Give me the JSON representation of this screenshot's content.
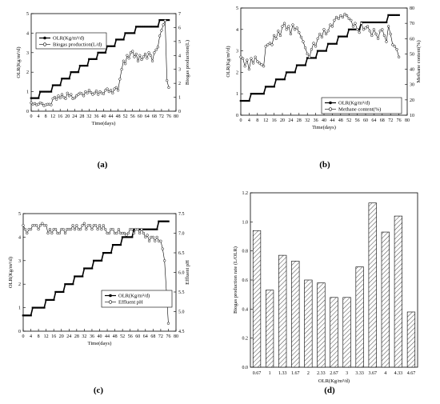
{
  "chart_data": [
    {
      "id": "a",
      "type": "line",
      "caption": "(a)",
      "xlabel": "Time(days)",
      "ylabel": "OLR(Kg/m³/d)",
      "y2label": "Biogas production(L)",
      "xticks": [
        0,
        4,
        8,
        12,
        16,
        20,
        24,
        28,
        32,
        36,
        40,
        44,
        48,
        52,
        56,
        60,
        64,
        68,
        72,
        76,
        80
      ],
      "yticks": [
        0,
        1,
        2,
        3,
        4,
        5
      ],
      "y2ticks": [
        0,
        1,
        2,
        3,
        4,
        5,
        6,
        7
      ],
      "xlim": [
        0,
        80
      ],
      "ylim": [
        0,
        5
      ],
      "y2lim": [
        0,
        7
      ],
      "legend": [
        "OLR(Kg/m³/d)",
        "Biogas production(L/d)"
      ],
      "series": [
        {
          "name": "OLR(Kg/m³/d)",
          "axis": "left",
          "x": [
            0,
            1,
            2,
            3,
            4,
            5,
            6,
            7,
            8,
            9,
            10,
            11,
            12,
            13,
            14,
            15,
            16,
            17,
            18,
            19,
            20,
            21,
            22,
            23,
            24,
            25,
            26,
            27,
            28,
            29,
            30,
            31,
            32,
            33,
            34,
            35,
            36,
            37,
            38,
            39,
            40,
            41,
            42,
            43,
            44,
            45,
            46,
            47,
            48,
            49,
            50,
            51,
            52,
            53,
            54,
            55,
            56,
            57,
            58,
            59,
            60,
            61,
            62,
            63,
            64,
            65,
            66,
            67,
            68,
            69,
            70,
            71,
            72,
            73,
            74,
            75,
            76
          ],
          "y": [
            0.67,
            0.67,
            0.67,
            0.67,
            0.67,
            1,
            1,
            1,
            1,
            1,
            1,
            1,
            1.33,
            1.33,
            1.33,
            1.33,
            1.33,
            1.67,
            1.67,
            1.67,
            1.67,
            1.67,
            2,
            2,
            2,
            2,
            2,
            2.33,
            2.33,
            2.33,
            2.33,
            2.33,
            2.67,
            2.67,
            2.67,
            2.67,
            2.67,
            3,
            3,
            3,
            3,
            3,
            3.33,
            3.33,
            3.33,
            3.33,
            3.33,
            3.67,
            3.67,
            3.67,
            3.67,
            3.67,
            4,
            4,
            4,
            4,
            4,
            4,
            4.33,
            4.33,
            4.33,
            4.33,
            4.33,
            4.33,
            4.33,
            4.33,
            4.33,
            4.33,
            4.33,
            4.33,
            4.33,
            4.67,
            4.67,
            4.67,
            4.67,
            4.67,
            4.67
          ]
        },
        {
          "name": "Biogas production(L/d)",
          "axis": "right",
          "x": [
            0,
            1,
            2,
            3,
            4,
            5,
            6,
            7,
            8,
            9,
            10,
            11,
            12,
            13,
            14,
            15,
            16,
            17,
            18,
            19,
            20,
            21,
            22,
            23,
            24,
            25,
            26,
            27,
            28,
            29,
            30,
            31,
            32,
            33,
            34,
            35,
            36,
            37,
            38,
            39,
            40,
            41,
            42,
            43,
            44,
            45,
            46,
            47,
            48,
            49,
            50,
            51,
            52,
            53,
            54,
            55,
            56,
            57,
            58,
            59,
            60,
            61,
            62,
            63,
            64,
            65,
            66,
            67,
            68,
            69,
            70,
            71,
            72,
            73,
            74,
            75,
            76
          ],
          "y": [
            0.6,
            0.5,
            0.55,
            0.45,
            0.5,
            0.6,
            0.55,
            0.4,
            0.45,
            0.5,
            0.5,
            0.45,
            0.9,
            1.0,
            0.85,
            1.1,
            0.95,
            1.2,
            1.0,
            0.9,
            1.3,
            1.1,
            1.2,
            0.9,
            0.95,
            1.1,
            1.2,
            1.3,
            1.25,
            1.1,
            1.4,
            1.3,
            1.5,
            1.35,
            1.2,
            1.3,
            1.45,
            1.2,
            1.4,
            1.3,
            1.25,
            1.5,
            1.6,
            1.4,
            1.5,
            1.3,
            1.6,
            1.7,
            1.5,
            2.3,
            3.0,
            3.6,
            3.4,
            4.0,
            3.8,
            4.2,
            4.3,
            3.9,
            4.1,
            3.6,
            4.0,
            3.7,
            3.9,
            4.1,
            3.8,
            4.2,
            4.0,
            3.6,
            4.2,
            4.4,
            4.6,
            5.4,
            5.8,
            6.2,
            6.5,
            2.2,
            1.7
          ]
        }
      ]
    },
    {
      "id": "b",
      "type": "line",
      "caption": "(b)",
      "xlabel": "Time(days)",
      "ylabel": "OLR(Kg/m³/d)",
      "y2label": "Methane content(%)",
      "xticks": [
        0,
        4,
        8,
        12,
        16,
        20,
        24,
        28,
        32,
        36,
        40,
        44,
        48,
        52,
        56,
        60,
        64,
        68,
        72,
        76,
        80
      ],
      "yticks": [
        0,
        1,
        2,
        3,
        4,
        5
      ],
      "y2ticks": [
        10,
        20,
        30,
        40,
        50,
        60,
        70,
        80
      ],
      "xlim": [
        0,
        80
      ],
      "ylim": [
        0,
        5
      ],
      "y2lim": [
        10,
        80
      ],
      "legend": [
        "OLR(Kg/m³/d)",
        "Methane content(%)"
      ],
      "series": [
        {
          "name": "OLR(Kg/m³/d)",
          "axis": "left",
          "x": [
            0,
            1,
            2,
            3,
            4,
            5,
            6,
            7,
            8,
            9,
            10,
            11,
            12,
            13,
            14,
            15,
            16,
            17,
            18,
            19,
            20,
            21,
            22,
            23,
            24,
            25,
            26,
            27,
            28,
            29,
            30,
            31,
            32,
            33,
            34,
            35,
            36,
            37,
            38,
            39,
            40,
            41,
            42,
            43,
            44,
            45,
            46,
            47,
            48,
            49,
            50,
            51,
            52,
            53,
            54,
            55,
            56,
            57,
            58,
            59,
            60,
            61,
            62,
            63,
            64,
            65,
            66,
            67,
            68,
            69,
            70,
            71,
            72,
            73,
            74,
            75,
            76
          ],
          "y": [
            0.67,
            0.67,
            0.67,
            0.67,
            0.67,
            1,
            1,
            1,
            1,
            1,
            1,
            1,
            1.33,
            1.33,
            1.33,
            1.33,
            1.33,
            1.67,
            1.67,
            1.67,
            1.67,
            1.67,
            2,
            2,
            2,
            2,
            2,
            2.33,
            2.33,
            2.33,
            2.33,
            2.33,
            2.67,
            2.67,
            2.67,
            2.67,
            2.67,
            3,
            3,
            3,
            3,
            3,
            3.33,
            3.33,
            3.33,
            3.33,
            3.33,
            3.67,
            3.67,
            3.67,
            3.67,
            3.67,
            4,
            4,
            4,
            4,
            4,
            4,
            4.33,
            4.33,
            4.33,
            4.33,
            4.33,
            4.33,
            4.33,
            4.33,
            4.33,
            4.33,
            4.33,
            4.33,
            4.33,
            4.67,
            4.67,
            4.67,
            4.67,
            4.67,
            4.67
          ]
        },
        {
          "name": "Methane content(%)",
          "axis": "right",
          "x": [
            0,
            1,
            2,
            3,
            4,
            5,
            6,
            7,
            8,
            9,
            10,
            11,
            12,
            13,
            14,
            15,
            16,
            17,
            18,
            19,
            20,
            21,
            22,
            23,
            24,
            25,
            26,
            27,
            28,
            29,
            30,
            31,
            32,
            33,
            34,
            35,
            36,
            37,
            38,
            39,
            40,
            41,
            42,
            43,
            44,
            45,
            46,
            47,
            48,
            49,
            50,
            51,
            52,
            53,
            54,
            55,
            56,
            57,
            58,
            59,
            60,
            61,
            62,
            63,
            64,
            65,
            66,
            67,
            68,
            69,
            70,
            71,
            72,
            73,
            74,
            75,
            76
          ],
          "y": [
            48,
            47,
            42,
            46,
            40,
            47,
            44,
            48,
            45,
            44,
            43,
            42,
            55,
            56,
            57,
            56,
            62,
            60,
            65,
            62,
            68,
            70,
            66,
            68,
            63,
            69,
            66,
            67,
            64,
            61,
            58,
            54,
            50,
            48,
            53,
            57,
            55,
            60,
            63,
            61,
            66,
            63,
            65,
            69,
            68,
            72,
            74,
            73,
            75,
            74,
            76,
            75,
            73,
            72,
            68,
            70,
            66,
            64,
            70,
            66,
            67,
            68,
            65,
            62,
            66,
            63,
            60,
            65,
            66,
            62,
            58,
            68,
            63,
            56,
            55,
            53,
            48
          ]
        }
      ]
    },
    {
      "id": "c",
      "type": "line",
      "caption": "(c)",
      "xlabel": "Time(days)",
      "ylabel": "OLR(Kg/m³/d)",
      "y2label": "Effluent pH",
      "xticks": [
        0,
        4,
        8,
        12,
        16,
        20,
        24,
        28,
        32,
        36,
        40,
        44,
        48,
        52,
        56,
        60,
        64,
        68,
        72,
        76,
        80
      ],
      "yticks": [
        0,
        1,
        2,
        3,
        4,
        5
      ],
      "y2ticks": [
        4.5,
        5.0,
        5.5,
        6.0,
        6.5,
        7.0,
        7.5
      ],
      "xlim": [
        0,
        80
      ],
      "ylim": [
        0,
        5
      ],
      "y2lim": [
        4.5,
        7.5
      ],
      "legend": [
        "OLR(Kg/m³/d)",
        "Effluent pH"
      ],
      "series": [
        {
          "name": "OLR(Kg/m³/d)",
          "axis": "left",
          "x": [
            0,
            1,
            2,
            3,
            4,
            5,
            6,
            7,
            8,
            9,
            10,
            11,
            12,
            13,
            14,
            15,
            16,
            17,
            18,
            19,
            20,
            21,
            22,
            23,
            24,
            25,
            26,
            27,
            28,
            29,
            30,
            31,
            32,
            33,
            34,
            35,
            36,
            37,
            38,
            39,
            40,
            41,
            42,
            43,
            44,
            45,
            46,
            47,
            48,
            49,
            50,
            51,
            52,
            53,
            54,
            55,
            56,
            57,
            58,
            59,
            60,
            61,
            62,
            63,
            64,
            65,
            66,
            67,
            68,
            69,
            70,
            71,
            72,
            73,
            74,
            75,
            76
          ],
          "y": [
            0.67,
            0.67,
            0.67,
            0.67,
            0.67,
            1,
            1,
            1,
            1,
            1,
            1,
            1,
            1.33,
            1.33,
            1.33,
            1.33,
            1.33,
            1.67,
            1.67,
            1.67,
            1.67,
            1.67,
            2,
            2,
            2,
            2,
            2,
            2.33,
            2.33,
            2.33,
            2.33,
            2.33,
            2.67,
            2.67,
            2.67,
            2.67,
            2.67,
            3,
            3,
            3,
            3,
            3,
            3.33,
            3.33,
            3.33,
            3.33,
            3.33,
            3.67,
            3.67,
            3.67,
            3.67,
            3.67,
            4,
            4,
            4,
            4,
            4,
            4,
            4.33,
            4.33,
            4.33,
            4.33,
            4.33,
            4.33,
            4.33,
            4.33,
            4.33,
            4.33,
            4.33,
            4.33,
            4.33,
            4.67,
            4.67,
            4.67,
            4.67,
            4.67,
            4.67
          ]
        },
        {
          "name": "Effluent pH",
          "axis": "right",
          "x": [
            0,
            1,
            2,
            3,
            4,
            5,
            6,
            7,
            8,
            9,
            10,
            11,
            12,
            13,
            14,
            15,
            16,
            17,
            18,
            19,
            20,
            21,
            22,
            23,
            24,
            25,
            26,
            27,
            28,
            29,
            30,
            31,
            32,
            33,
            34,
            35,
            36,
            37,
            38,
            39,
            40,
            41,
            42,
            43,
            44,
            45,
            46,
            47,
            48,
            49,
            50,
            51,
            52,
            53,
            54,
            55,
            56,
            57,
            58,
            59,
            60,
            61,
            62,
            63,
            64,
            65,
            66,
            67,
            68,
            69,
            70,
            71,
            72,
            73,
            74,
            75,
            76
          ],
          "y": [
            7.2,
            7.1,
            7.0,
            7.1,
            7.1,
            7.2,
            7.2,
            7.2,
            7.1,
            7.2,
            7.25,
            7.2,
            7.2,
            7.0,
            7.1,
            7.0,
            7.1,
            7.1,
            7.0,
            7.0,
            7.1,
            7.1,
            7.0,
            7.1,
            7.1,
            7.1,
            7.2,
            7.1,
            7.2,
            7.1,
            7.1,
            7.2,
            7.25,
            7.1,
            7.2,
            7.2,
            7.1,
            7.2,
            7.2,
            7.1,
            7.2,
            7.1,
            7.2,
            7.1,
            7.0,
            7.0,
            7.1,
            7.1,
            7.0,
            7.0,
            7.1,
            7.0,
            7.0,
            7.0,
            6.95,
            7.0,
            7.1,
            7.1,
            7.0,
            7.1,
            7.1,
            7.0,
            7.1,
            7.0,
            6.9,
            6.95,
            6.8,
            6.9,
            6.9,
            6.8,
            6.9,
            6.8,
            6.8,
            6.6,
            6.3,
            5.5,
            4.7
          ]
        }
      ]
    },
    {
      "id": "d",
      "type": "bar",
      "caption": "(d)",
      "xlabel": "OLR(Kg/m³/d)",
      "ylabel": "Biogas production rate (L/OLR)",
      "yticks": [
        0,
        0.2,
        0.4,
        0.6,
        0.8,
        1.0,
        1.2
      ],
      "ytick_labels": [
        "0.0",
        "0.2",
        "0.4",
        "0.6",
        "0.8",
        "1.0",
        "1.2"
      ],
      "ylim": [
        0,
        1.2
      ],
      "categories": [
        "0.67",
        "1",
        "1.33",
        "1.67",
        "2",
        "2.33",
        "2.67",
        "3",
        "3.33",
        "3.67",
        "4",
        "4.33",
        "4.67"
      ],
      "values": [
        0.94,
        0.53,
        0.77,
        0.73,
        0.6,
        0.58,
        0.48,
        0.48,
        0.69,
        1.13,
        0.93,
        1.04,
        0.38
      ]
    }
  ]
}
